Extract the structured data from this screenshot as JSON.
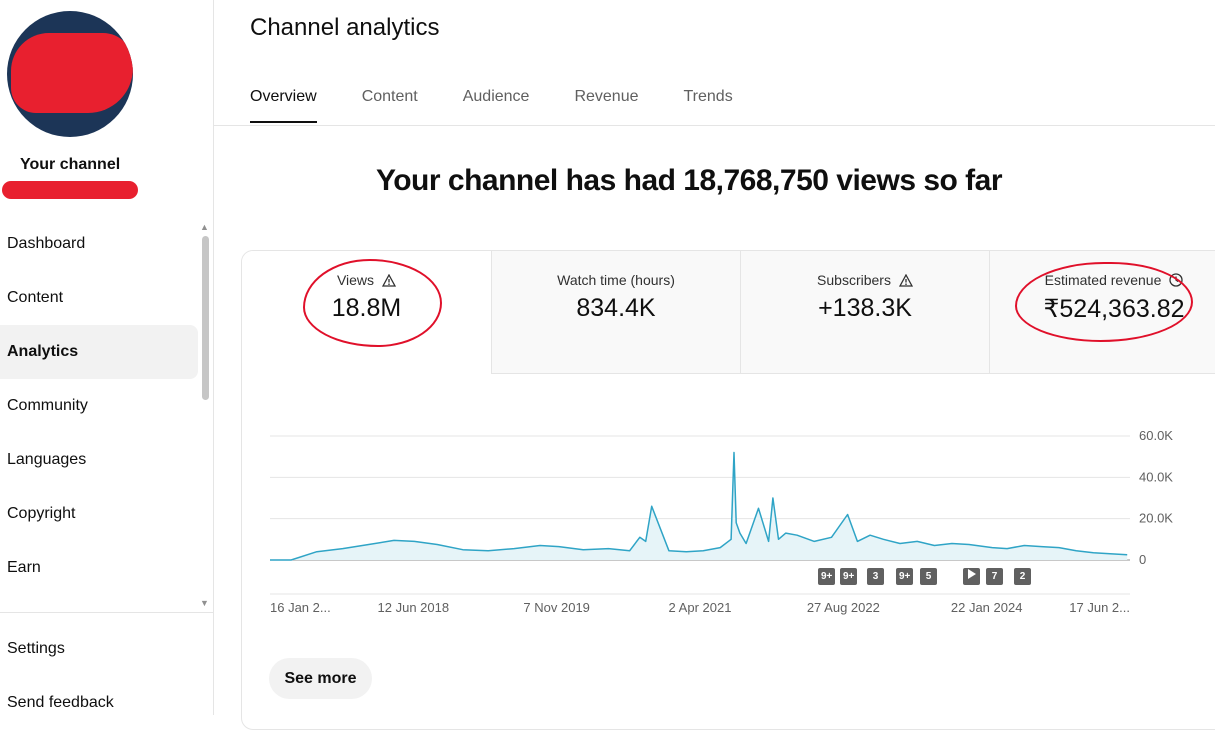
{
  "sidebar": {
    "channel_label": "Your channel",
    "items": [
      {
        "label": "Dashboard"
      },
      {
        "label": "Content"
      },
      {
        "label": "Analytics"
      },
      {
        "label": "Community"
      },
      {
        "label": "Languages"
      },
      {
        "label": "Copyright"
      },
      {
        "label": "Earn"
      }
    ],
    "settings": "Settings",
    "feedback": "Send feedback"
  },
  "header": {
    "title": "Channel analytics"
  },
  "tabs": [
    {
      "label": "Overview"
    },
    {
      "label": "Content"
    },
    {
      "label": "Audience"
    },
    {
      "label": "Revenue"
    },
    {
      "label": "Trends"
    }
  ],
  "headline": "Your channel has had 18,768,750 views so far",
  "metrics": [
    {
      "label": "Views",
      "value": "18.8M",
      "icon": "warning-icon"
    },
    {
      "label": "Watch time (hours)",
      "value": "834.4K"
    },
    {
      "label": "Subscribers",
      "value": "+138.3K",
      "icon": "warning-icon"
    },
    {
      "label": "Estimated revenue",
      "value": "₹524,363.82",
      "icon": "clock-icon"
    }
  ],
  "see_more": "See more",
  "colors": {
    "accent": "#0f0f0f",
    "line": "#2fa4c6",
    "fill": "#e6f4f8",
    "annotation": "#e0102a"
  },
  "chart_data": {
    "type": "area",
    "series": [
      {
        "x": [
          "2017-01-16",
          "2017-04-01",
          "2017-07-01",
          "2017-10-01",
          "2018-01-01",
          "2018-04-01",
          "2018-06-12",
          "2018-09-01",
          "2018-12-01",
          "2019-03-01",
          "2019-06-01",
          "2019-09-01",
          "2019-11-07",
          "2020-02-01",
          "2020-05-01",
          "2020-07-15",
          "2020-08-20",
          "2020-09-10",
          "2020-10-01",
          "2020-12-01",
          "2021-02-01",
          "2021-04-02",
          "2021-06-01",
          "2021-07-10",
          "2021-07-20",
          "2021-07-28",
          "2021-08-10",
          "2021-09-01",
          "2021-10-15",
          "2021-11-20",
          "2021-12-05",
          "2021-12-25",
          "2022-01-20",
          "2022-03-01",
          "2022-05-01",
          "2022-07-01",
          "2022-08-27",
          "2022-10-01",
          "2022-11-15",
          "2023-01-01",
          "2023-03-01",
          "2023-05-01",
          "2023-07-01",
          "2023-09-01",
          "2023-11-01",
          "2024-01-22",
          "2024-03-15",
          "2024-05-15",
          "2024-07-15",
          "2024-09-15",
          "2024-11-15",
          "2025-01-15",
          "2025-03-15",
          "2025-05-15"
        ],
        "values": [
          0,
          0,
          4000,
          5500,
          7500,
          9500,
          9000,
          7500,
          5000,
          4500,
          5500,
          7000,
          6500,
          5000,
          5500,
          4500,
          11000,
          9000,
          26000,
          4500,
          4000,
          4500,
          6000,
          10000,
          52000,
          18000,
          13000,
          8000,
          25000,
          9000,
          30000,
          10000,
          13000,
          12000,
          9000,
          11000,
          22000,
          9000,
          12000,
          10000,
          8000,
          9000,
          7000,
          8000,
          7500,
          6000,
          5500,
          7000,
          6500,
          6000,
          4500,
          3500,
          3000,
          2500
        ]
      }
    ],
    "x_tick_labels": [
      "16 Jan 2...",
      "12 Jun 2018",
      "7 Nov 2019",
      "2 Apr 2021",
      "27 Aug 2022",
      "22 Jan 2024",
      "17 Jun 2..."
    ],
    "y_tick_labels": [
      "60.0K",
      "40.0K",
      "20.0K",
      "0"
    ],
    "ylim": [
      0,
      60000
    ],
    "grid": true,
    "annotation_markers": [
      {
        "label": "9+"
      },
      {
        "label": "9+"
      },
      {
        "label": "3"
      },
      {
        "label": "9+"
      },
      {
        "label": "5"
      },
      {
        "label": "",
        "icon": "play-icon"
      },
      {
        "label": "7"
      },
      {
        "label": "2"
      }
    ]
  }
}
